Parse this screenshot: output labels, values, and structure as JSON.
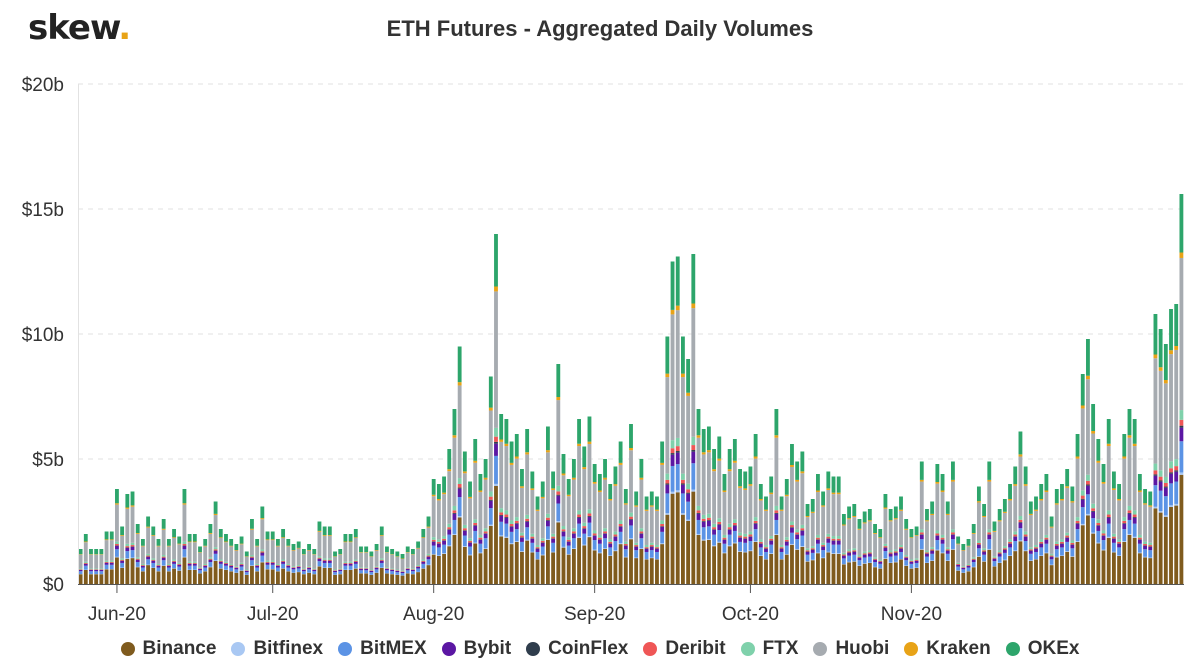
{
  "header": {
    "logo_text": "skew",
    "logo_dot": ".",
    "title": "ETH Futures - Aggregated Daily Volumes"
  },
  "chart_data": {
    "type": "bar",
    "stacked": true,
    "title": "ETH Futures - Aggregated Daily Volumes",
    "x_start": "2020-05-25",
    "x_ticks": [
      {
        "label": "Jun-20",
        "date": "2020-06-01"
      },
      {
        "label": "Jul-20",
        "date": "2020-07-01"
      },
      {
        "label": "Aug-20",
        "date": "2020-08-01"
      },
      {
        "label": "Sep-20",
        "date": "2020-09-01"
      },
      {
        "label": "Oct-20",
        "date": "2020-10-01"
      },
      {
        "label": "Nov-20",
        "date": "2020-11-01"
      }
    ],
    "y_ticks": [
      {
        "label": "$0",
        "value": 0
      },
      {
        "label": "$5b",
        "value": 5
      },
      {
        "label": "$10b",
        "value": 10
      },
      {
        "label": "$15b",
        "value": 15
      },
      {
        "label": "$20b",
        "value": 20
      }
    ],
    "ylim": [
      0,
      20
    ],
    "y_unit": "USD billions",
    "grid": true,
    "legend_position": "bottom",
    "totals": [
      1.4,
      2.0,
      1.4,
      1.4,
      1.4,
      2.1,
      2.1,
      3.8,
      2.3,
      3.6,
      3.7,
      2.4,
      1.8,
      2.7,
      2.3,
      1.8,
      2.6,
      1.8,
      2.2,
      1.9,
      3.8,
      2.0,
      2.0,
      1.5,
      1.8,
      2.4,
      3.3,
      2.2,
      2.0,
      1.8,
      1.6,
      1.9,
      1.3,
      2.6,
      1.8,
      3.1,
      2.1,
      2.1,
      1.8,
      2.2,
      1.8,
      1.6,
      1.7,
      1.4,
      1.6,
      1.4,
      2.5,
      2.3,
      2.3,
      1.3,
      1.4,
      2.0,
      2.0,
      2.2,
      1.5,
      1.5,
      1.3,
      1.6,
      2.3,
      1.5,
      1.4,
      1.3,
      1.2,
      1.5,
      1.4,
      1.7,
      2.2,
      2.7,
      4.2,
      4.0,
      4.3,
      5.4,
      7.0,
      9.5,
      5.3,
      4.1,
      5.8,
      4.4,
      5.0,
      8.3,
      14.0,
      6.8,
      6.6,
      5.7,
      6.0,
      4.6,
      6.2,
      4.5,
      3.5,
      4.1,
      6.3,
      4.5,
      8.8,
      5.2,
      4.2,
      5.0,
      6.6,
      5.5,
      6.7,
      4.8,
      4.4,
      5.0,
      4.0,
      4.7,
      5.7,
      3.8,
      6.4,
      3.7,
      5.0,
      3.5,
      3.7,
      3.5,
      5.7,
      9.9,
      12.9,
      13.1,
      9.9,
      9.0,
      13.2,
      7.0,
      6.2,
      6.3,
      5.4,
      5.9,
      4.4,
      5.4,
      5.8,
      4.6,
      4.5,
      4.7,
      6.0,
      4.0,
      3.5,
      4.3,
      7.0,
      3.5,
      4.2,
      5.6,
      4.9,
      5.3,
      3.2,
      3.4,
      4.4,
      3.7,
      4.5,
      4.3,
      4.3,
      2.8,
      3.1,
      3.2,
      2.6,
      2.9,
      3.0,
      2.4,
      2.2,
      3.6,
      3.0,
      3.1,
      3.5,
      2.6,
      2.2,
      2.3,
      4.9,
      3.0,
      3.3,
      4.8,
      4.4,
      3.3,
      4.9,
      1.9,
      1.6,
      1.8,
      2.4,
      3.9,
      3.2,
      4.9,
      2.5,
      3.0,
      3.4,
      4.0,
      4.7,
      6.1,
      4.7,
      3.3,
      3.5,
      4.0,
      4.4,
      2.7,
      3.8,
      4.0,
      4.6,
      3.9,
      6.0,
      8.4,
      9.8,
      7.2,
      5.8,
      4.8,
      6.6,
      4.5,
      4.0,
      6.0,
      7.0,
      6.6,
      4.4,
      3.8,
      3.7,
      10.8,
      10.2,
      9.6,
      11.0,
      11.2,
      15.6
    ]
  },
  "legend": {
    "items": [
      {
        "label": "Binance",
        "color": "#7f5b1e"
      },
      {
        "label": "Bitfinex",
        "color": "#a9c8f3"
      },
      {
        "label": "BitMEX",
        "color": "#5b93e5"
      },
      {
        "label": "Bybit",
        "color": "#5b17a3"
      },
      {
        "label": "CoinFlex",
        "color": "#2f3d4c"
      },
      {
        "label": "Deribit",
        "color": "#ef5656"
      },
      {
        "label": "FTX",
        "color": "#7fd1ab"
      },
      {
        "label": "Huobi",
        "color": "#a6abb0"
      },
      {
        "label": "Kraken",
        "color": "#e8a317"
      },
      {
        "label": "OKEx",
        "color": "#2da56b"
      }
    ]
  }
}
